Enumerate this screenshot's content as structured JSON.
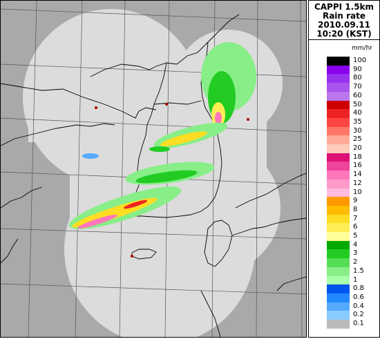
{
  "header": {
    "line1": "CAPPI 1.5km",
    "line2": "Rain rate",
    "line3": "2010.09.11",
    "line4": "10:20 (KST)"
  },
  "legend": {
    "unit": "mm/hr",
    "levels": [
      {
        "label": "100",
        "color": "#000000"
      },
      {
        "label": "90",
        "color": "#8800ee"
      },
      {
        "label": "80",
        "color": "#9933ee"
      },
      {
        "label": "70",
        "color": "#aa55ee"
      },
      {
        "label": "60",
        "color": "#bb77ee"
      },
      {
        "label": "50",
        "color": "#cc0000"
      },
      {
        "label": "40",
        "color": "#ee2222"
      },
      {
        "label": "35",
        "color": "#ff4444"
      },
      {
        "label": "30",
        "color": "#ff7766"
      },
      {
        "label": "25",
        "color": "#ffaa99"
      },
      {
        "label": "20",
        "color": "#ffccbb"
      },
      {
        "label": "18",
        "color": "#dd1177"
      },
      {
        "label": "16",
        "color": "#ee4499"
      },
      {
        "label": "14",
        "color": "#ff77bb"
      },
      {
        "label": "12",
        "color": "#ff99cc"
      },
      {
        "label": "10",
        "color": "#ffbbdd"
      },
      {
        "label": "9",
        "color": "#ff9900"
      },
      {
        "label": "8",
        "color": "#ffbb00"
      },
      {
        "label": "7",
        "color": "#ffdd22"
      },
      {
        "label": "6",
        "color": "#ffee55"
      },
      {
        "label": "5",
        "color": "#ffff99"
      },
      {
        "label": "4",
        "color": "#00aa00"
      },
      {
        "label": "3",
        "color": "#22cc22"
      },
      {
        "label": "2",
        "color": "#55dd55"
      },
      {
        "label": "1.5",
        "color": "#88ee88"
      },
      {
        "label": "1",
        "color": "#aaffaa"
      },
      {
        "label": "0.8",
        "color": "#0055ee"
      },
      {
        "label": "0.6",
        "color": "#2288ff"
      },
      {
        "label": "0.4",
        "color": "#55aaff"
      },
      {
        "label": "0.2",
        "color": "#88ccff"
      },
      {
        "label": "0.1",
        "color": "#bbbbbb"
      }
    ]
  },
  "map": {
    "background_color": "#a9a9a9",
    "coverage_color": "#dcdcdc",
    "grid_color": "#555555",
    "coast_color": "#000000",
    "site_color": "#aa0000"
  }
}
